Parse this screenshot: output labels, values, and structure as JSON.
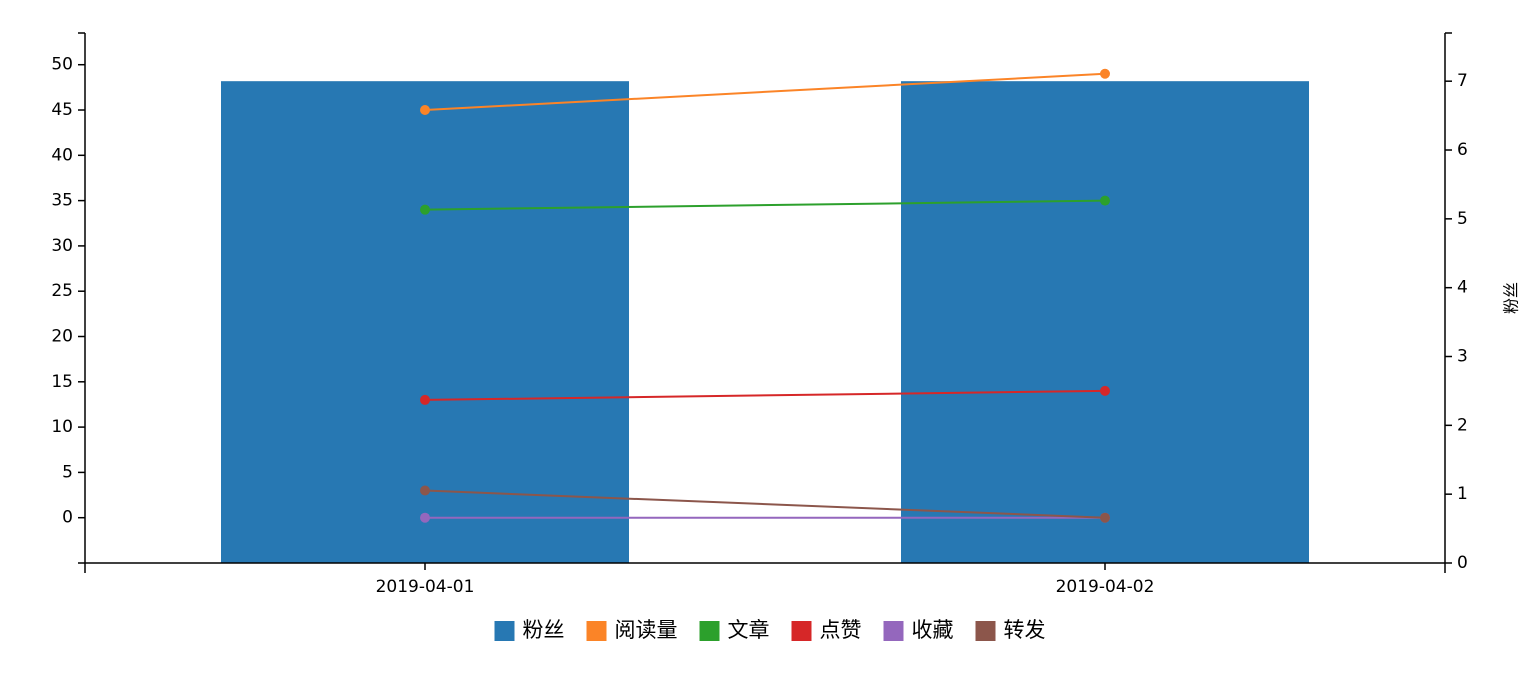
{
  "chart_data": {
    "type": "bar",
    "categories": [
      "2019-04-01",
      "2019-04-02"
    ],
    "title": "",
    "xlabel": "",
    "ylabel_left": "",
    "ylabel_right": "粉丝",
    "y_left": {
      "ticks": [
        0,
        5,
        10,
        15,
        20,
        25,
        30,
        35,
        40,
        45,
        50
      ],
      "ylim": [
        -5,
        53.5
      ]
    },
    "y_right": {
      "ticks": [
        0,
        1,
        2,
        3,
        4,
        5,
        6,
        7
      ],
      "ylim": [
        0,
        7.7
      ]
    },
    "series": [
      {
        "name": "粉丝",
        "kind": "bar",
        "axis": "right",
        "color": "#2778b3",
        "values": [
          7,
          7
        ]
      },
      {
        "name": "阅读量",
        "kind": "line",
        "axis": "left",
        "color": "#fb8427",
        "values": [
          45,
          49
        ]
      },
      {
        "name": "文章",
        "kind": "line",
        "axis": "left",
        "color": "#2ca02c",
        "values": [
          34,
          35
        ]
      },
      {
        "name": "点赞",
        "kind": "line",
        "axis": "left",
        "color": "#d62728",
        "values": [
          13,
          14
        ]
      },
      {
        "name": "收藏",
        "kind": "line",
        "axis": "left",
        "color": "#9467bd",
        "values": [
          0,
          0
        ]
      },
      {
        "name": "转发",
        "kind": "line",
        "axis": "left",
        "color": "#8c564b",
        "values": [
          3,
          0
        ]
      }
    ],
    "grid": false,
    "legend_position": "bottom"
  }
}
